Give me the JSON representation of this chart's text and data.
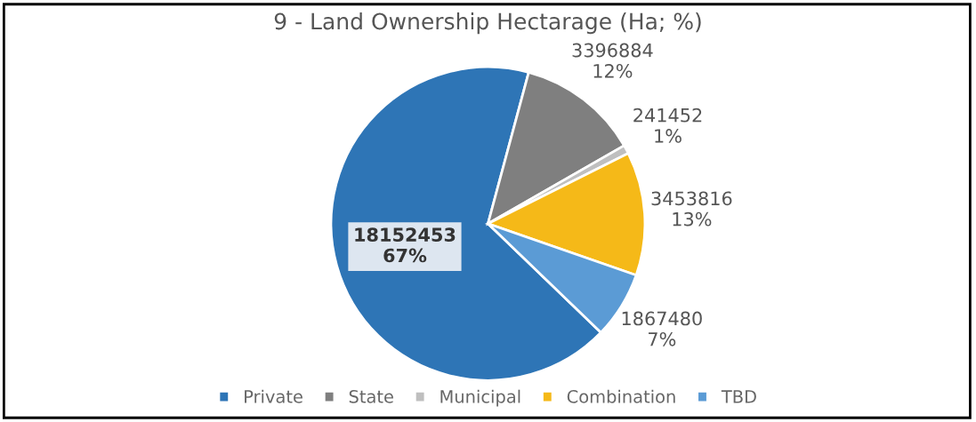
{
  "chart_data": {
    "type": "pie",
    "title": "9 - Land Ownership Hectarage (Ha; %)",
    "categories": [
      "Private",
      "State",
      "Municipal",
      "Combination",
      "TBD"
    ],
    "values": [
      18152453,
      3396884,
      241452,
      3453816,
      1867480
    ],
    "colors": [
      "#2e75b6",
      "#7f7f7f",
      "#bfbfbf",
      "#f5b918",
      "#5b9bd5"
    ],
    "value_labels": [
      "18152453\n67%",
      "3396884\n12%",
      "241452\n1%",
      "3453816\n13%",
      "1867480\n7%"
    ],
    "legend": "bottom"
  }
}
